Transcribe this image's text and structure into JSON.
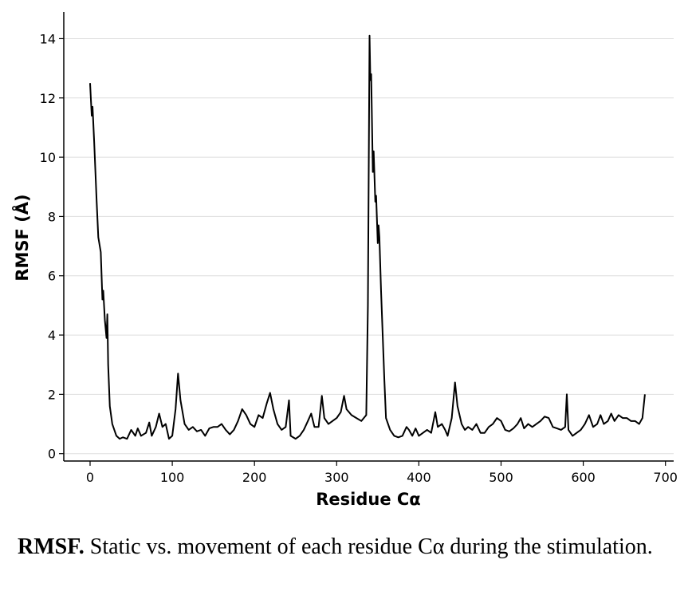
{
  "chart_data": {
    "type": "line",
    "xlabel": "Residue Cα",
    "ylabel": "RMSF (Å)",
    "xlim": [
      -32,
      710
    ],
    "ylim": [
      -0.25,
      14.9
    ],
    "xticks": [
      0,
      100,
      200,
      300,
      400,
      500,
      600,
      700
    ],
    "yticks": [
      0,
      2,
      4,
      6,
      8,
      10,
      12,
      14
    ],
    "grid": true,
    "series": [
      {
        "color": "#000000",
        "x": [
          0,
          2,
          3,
          5,
          8,
          10,
          13,
          15,
          16,
          18,
          20,
          21,
          22,
          24,
          27,
          32,
          36,
          40,
          45,
          50,
          55,
          58,
          62,
          68,
          72,
          75,
          80,
          84,
          88,
          92,
          96,
          100,
          104,
          107,
          110,
          115,
          120,
          125,
          130,
          135,
          140,
          145,
          150,
          155,
          160,
          165,
          170,
          175,
          180,
          185,
          190,
          195,
          200,
          205,
          210,
          215,
          219,
          223,
          228,
          233,
          238,
          242,
          244,
          250,
          255,
          260,
          265,
          269,
          273,
          278,
          282,
          285,
          290,
          295,
          300,
          305,
          309,
          312,
          318,
          324,
          330,
          336,
          338,
          340,
          341,
          342,
          344,
          345,
          347,
          348,
          350,
          351,
          352,
          354,
          356,
          358,
          360,
          365,
          370,
          375,
          380,
          385,
          388,
          392,
          396,
          400,
          405,
          410,
          415,
          420,
          423,
          428,
          432,
          435,
          440,
          444,
          447,
          452,
          456,
          460,
          465,
          470,
          475,
          480,
          485,
          490,
          495,
          500,
          505,
          510,
          515,
          520,
          524,
          528,
          533,
          538,
          543,
          548,
          553,
          558,
          563,
          568,
          573,
          578,
          580,
          582,
          587,
          592,
          597,
          602,
          607,
          612,
          617,
          621,
          625,
          630,
          634,
          638,
          643,
          648,
          653,
          658,
          663,
          668,
          672,
          675
        ],
        "values": [
          12.5,
          11.4,
          11.7,
          10.5,
          8.5,
          7.3,
          6.8,
          5.2,
          5.5,
          4.5,
          3.9,
          4.7,
          3.0,
          1.6,
          1.0,
          0.6,
          0.5,
          0.55,
          0.5,
          0.8,
          0.6,
          0.85,
          0.6,
          0.7,
          1.05,
          0.6,
          0.9,
          1.35,
          0.9,
          1.0,
          0.5,
          0.6,
          1.5,
          2.7,
          1.8,
          1.0,
          0.8,
          0.9,
          0.75,
          0.8,
          0.6,
          0.85,
          0.9,
          0.9,
          1.0,
          0.8,
          0.65,
          0.8,
          1.1,
          1.5,
          1.3,
          1.0,
          0.9,
          1.3,
          1.2,
          1.7,
          2.05,
          1.5,
          1.0,
          0.8,
          0.9,
          1.8,
          0.6,
          0.5,
          0.6,
          0.8,
          1.1,
          1.35,
          0.9,
          0.9,
          1.95,
          1.2,
          1.0,
          1.1,
          1.2,
          1.4,
          1.95,
          1.5,
          1.3,
          1.2,
          1.1,
          1.3,
          5.0,
          14.1,
          12.6,
          12.8,
          9.5,
          10.2,
          8.5,
          8.7,
          7.1,
          7.7,
          7.3,
          5.5,
          4.0,
          2.5,
          1.2,
          0.8,
          0.6,
          0.55,
          0.6,
          0.9,
          0.8,
          0.6,
          0.85,
          0.6,
          0.7,
          0.8,
          0.7,
          1.4,
          0.9,
          1.0,
          0.8,
          0.6,
          1.2,
          2.4,
          1.6,
          1.0,
          0.8,
          0.9,
          0.8,
          1.0,
          0.7,
          0.7,
          0.9,
          1.0,
          1.2,
          1.1,
          0.8,
          0.75,
          0.85,
          1.0,
          1.2,
          0.85,
          1.0,
          0.9,
          1.0,
          1.1,
          1.25,
          1.2,
          0.9,
          0.85,
          0.8,
          0.9,
          2.0,
          0.8,
          0.6,
          0.7,
          0.8,
          1.0,
          1.3,
          0.9,
          1.0,
          1.3,
          1.0,
          1.1,
          1.35,
          1.1,
          1.3,
          1.2,
          1.2,
          1.1,
          1.1,
          1.0,
          1.2,
          2.0
        ]
      }
    ]
  },
  "caption": {
    "bold": "RMSF.",
    "text": " Static vs. movement of each residue Cα during the stimulation."
  }
}
